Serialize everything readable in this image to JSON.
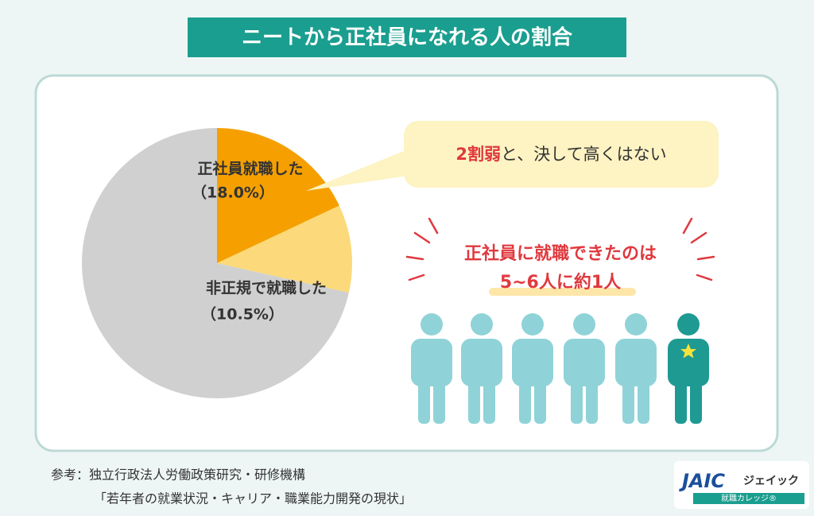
{
  "chart_data": {
    "type": "pie",
    "title": "ニートから正社員になれる人の割合",
    "categories": [
      "正社員就職した",
      "非正規で就職した",
      null
    ],
    "values": [
      18.0,
      10.5,
      71.5
    ],
    "value_labels": [
      "（18.0%）",
      "（10.5%）",
      null
    ],
    "colors": [
      "#f5a000",
      "#fcd97a",
      "#d0d0d0"
    ]
  },
  "callout": {
    "emphasis": "2割弱",
    "text": "と、決して高くはない"
  },
  "headline": {
    "line1": "正社員に就職できたのは",
    "line2": "5~6人に約1人"
  },
  "source": {
    "line1": "参考：独立行政法人労働政策研究・研修機構",
    "line2": "「若年者の就業状況・キャリア・職業能力開発の現状」"
  },
  "logo": {
    "mark": "JAIC",
    "name": "ジェイック",
    "sub": "就職カレッジ®"
  }
}
